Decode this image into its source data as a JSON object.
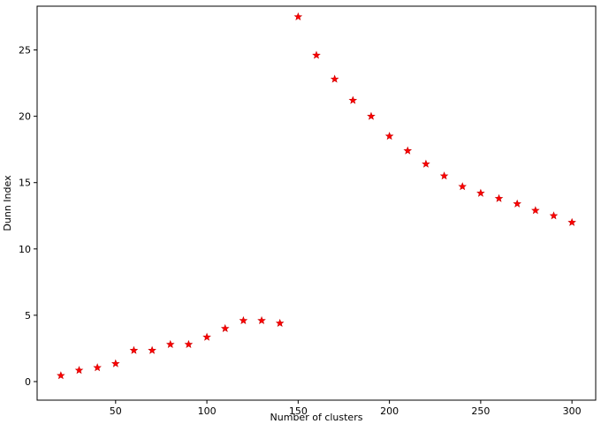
{
  "chart_data": {
    "type": "scatter",
    "title": "",
    "xlabel": "Number of clusters",
    "ylabel": "Dunn Index",
    "xlim": [
      7,
      313
    ],
    "ylim": [
      -1.4,
      28.3
    ],
    "xticks": [
      50,
      100,
      150,
      200,
      250,
      300
    ],
    "yticks": [
      0,
      5,
      10,
      15,
      20,
      25
    ],
    "grid": false,
    "legend": "none",
    "marker": "star",
    "marker_color": "#ff0000",
    "series": [
      {
        "x": [
          20,
          30,
          40,
          50,
          60,
          70,
          80,
          90,
          100,
          110,
          120,
          130,
          140,
          150,
          160,
          170,
          180,
          190,
          200,
          210,
          220,
          230,
          240,
          250,
          260,
          270,
          280,
          290,
          300
        ],
        "y": [
          0.45,
          0.85,
          1.05,
          1.35,
          2.35,
          2.35,
          2.8,
          2.8,
          3.35,
          4.0,
          4.6,
          4.6,
          4.4,
          27.5,
          24.6,
          22.8,
          21.2,
          20.0,
          18.5,
          17.4,
          16.4,
          15.5,
          14.7,
          14.2,
          13.8,
          13.4,
          12.9,
          12.5,
          12.0
        ]
      }
    ]
  }
}
